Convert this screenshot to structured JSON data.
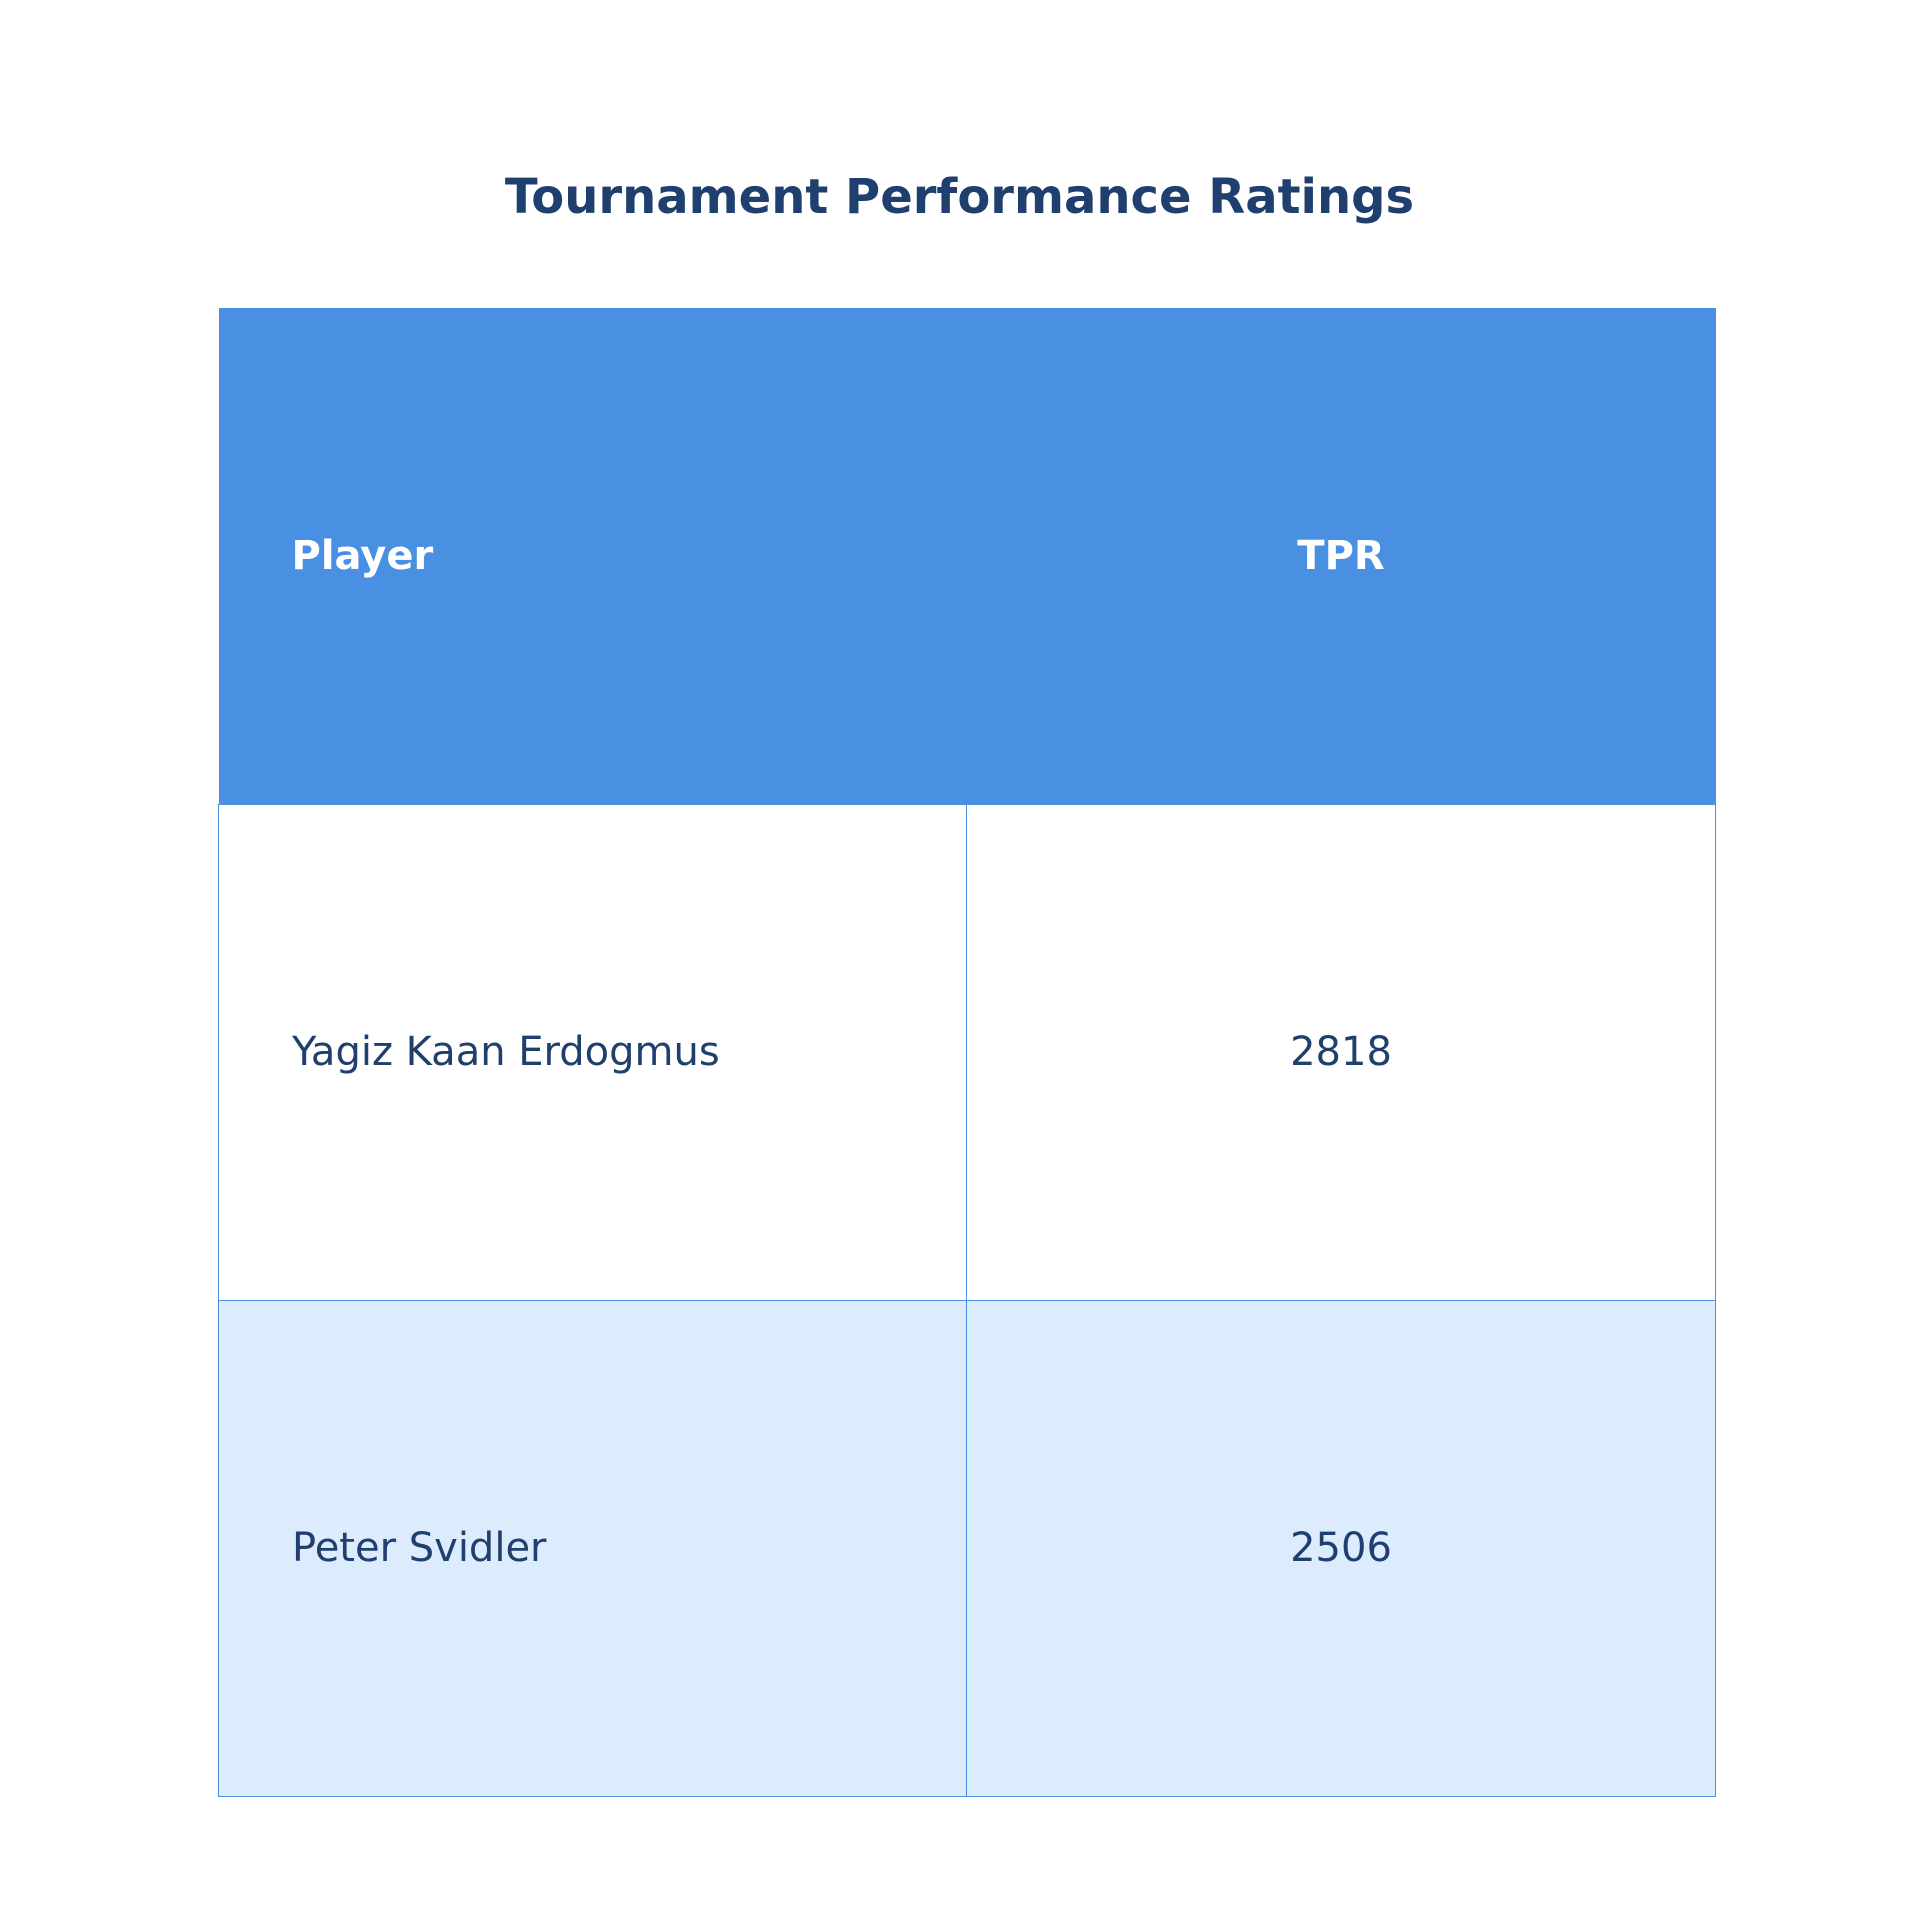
{
  "title": "Tournament Performance Ratings",
  "colors": {
    "title": "#1f3f6e",
    "header_bg": "#4a90e2",
    "header_text": "#ffffff",
    "cell_text": "#1f3f6e",
    "row_alt_bg": "#ddecfc",
    "border": "#4a90e2"
  },
  "chart_data": {
    "type": "table",
    "title": "Tournament Performance Ratings",
    "columns": [
      "Player",
      "TPR"
    ],
    "rows": [
      {
        "player": "Yagiz Kaan Erdogmus",
        "tpr": "2818"
      },
      {
        "player": "Peter Svidler",
        "tpr": "2506"
      }
    ]
  }
}
